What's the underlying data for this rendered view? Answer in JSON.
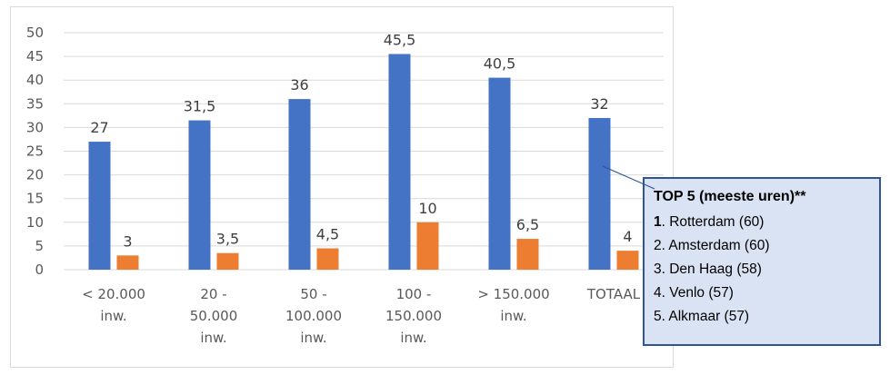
{
  "chart_data": {
    "type": "bar",
    "categories": [
      [
        "< 20.000",
        "inw."
      ],
      [
        "20 -",
        "50.000",
        "inw."
      ],
      [
        "50 -",
        "100.000",
        "inw."
      ],
      [
        "100 -",
        "150.000",
        "inw."
      ],
      [
        "> 150.000",
        "inw."
      ],
      [
        "TOTAAL"
      ]
    ],
    "series": [
      {
        "values": [
          27,
          31.5,
          36,
          45.5,
          40.5,
          32
        ],
        "labels": [
          "27",
          "31,5",
          "36",
          "45,5",
          "40,5",
          "32"
        ],
        "color": "#4472c4"
      },
      {
        "values": [
          3,
          3.5,
          4.5,
          10,
          6.5,
          4
        ],
        "labels": [
          "3",
          "3,5",
          "4,5",
          "10",
          "6,5",
          "4"
        ],
        "color": "#ed7d31"
      }
    ],
    "ylim": [
      0,
      50
    ],
    "yticks": [
      "0",
      "5",
      "10",
      "15",
      "20",
      "25",
      "30",
      "35",
      "40",
      "45",
      "50"
    ],
    "grid": true,
    "legend": "none"
  },
  "callout": {
    "title": "TOP 5 (meeste uren)**",
    "items": [
      {
        "rank": "1",
        "rank_bold": true,
        "text": ". Rotterdam (60)"
      },
      {
        "rank": "2",
        "rank_bold": false,
        "text": ". Amsterdam (60)"
      },
      {
        "rank": "3",
        "rank_bold": false,
        "text": ". Den Haag (58)"
      },
      {
        "rank": "4",
        "rank_bold": false,
        "text": ". Venlo (57)"
      },
      {
        "rank": "5",
        "rank_bold": false,
        "text": ". Alkmaar (57)"
      }
    ]
  },
  "colors": {
    "grid": "#d9d9d9",
    "callout_fill": "#dae3f3",
    "callout_border": "#2f5597"
  }
}
